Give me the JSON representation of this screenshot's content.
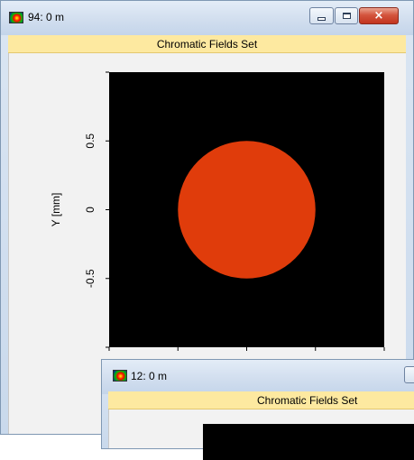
{
  "window_main": {
    "title": "94: 0 m",
    "subtitle": "Chromatic Fields Set",
    "icon": "field-colormap-icon",
    "buttons": {
      "minimize": "minimize-icon",
      "maximize": "maximize-icon",
      "close": "×"
    }
  },
  "window_second": {
    "title": "12: 0 m",
    "subtitle": "Chromatic Fields Set",
    "icon": "field-colormap-icon"
  },
  "chart_data": {
    "type": "heatmap",
    "ylabel": "Y [mm]",
    "y_ticks": [
      "0.5",
      "0",
      "-0.5"
    ],
    "y_tick_values": [
      0.5,
      0,
      -0.5
    ],
    "ylim": [
      -1,
      1
    ],
    "xlim": [
      -1,
      1
    ],
    "background_color": "#000000",
    "spot": {
      "shape": "circle",
      "center_x": 0,
      "center_y": 0,
      "radius": 0.5,
      "color": "#e03c0b"
    }
  }
}
